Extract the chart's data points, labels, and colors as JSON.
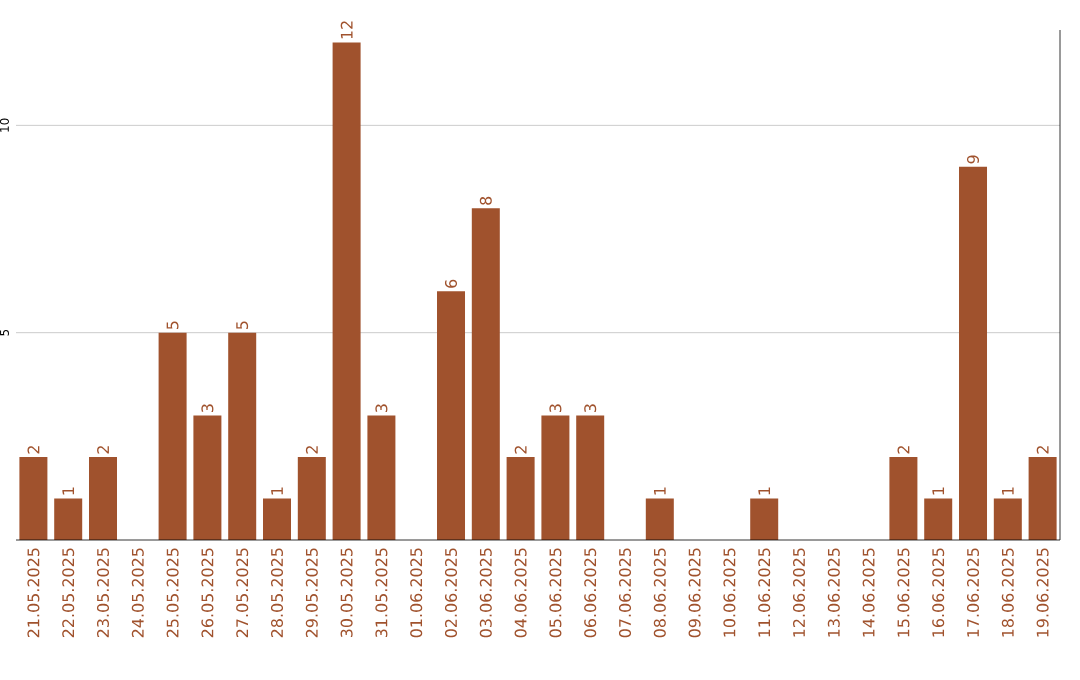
{
  "chart_data": {
    "type": "bar",
    "categories": [
      "21.05.2025",
      "22.05.2025",
      "23.05.2025",
      "24.05.2025",
      "25.05.2025",
      "26.05.2025",
      "27.05.2025",
      "28.05.2025",
      "29.05.2025",
      "30.05.2025",
      "31.05.2025",
      "01.06.2025",
      "02.06.2025",
      "03.06.2025",
      "04.06.2025",
      "05.06.2025",
      "06.06.2025",
      "07.06.2025",
      "08.06.2025",
      "09.06.2025",
      "10.06.2025",
      "11.06.2025",
      "12.06.2025",
      "13.06.2025",
      "14.06.2025",
      "15.06.2025",
      "16.06.2025",
      "17.06.2025",
      "18.06.2025",
      "19.06.2025"
    ],
    "values": [
      2,
      1,
      2,
      0,
      5,
      3,
      5,
      1,
      2,
      12,
      3,
      0,
      6,
      8,
      2,
      3,
      3,
      0,
      1,
      0,
      0,
      1,
      0,
      0,
      0,
      2,
      1,
      9,
      1,
      2
    ],
    "value_labels": [
      "2",
      "1",
      "2",
      null,
      "5",
      "3",
      "5",
      "1",
      "2",
      "12",
      "3",
      null,
      "6",
      "8",
      "2",
      "3",
      "3",
      null,
      "1",
      null,
      null,
      "1",
      null,
      null,
      null,
      "2",
      "1",
      "9",
      "1",
      "2"
    ],
    "color": "#a0522d",
    "ylim": [
      0,
      12.3
    ],
    "yticks": [
      5,
      10
    ],
    "grid": "y"
  }
}
